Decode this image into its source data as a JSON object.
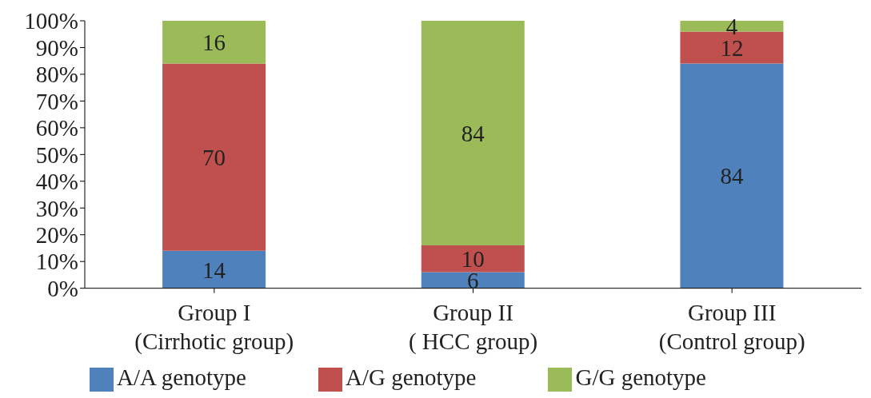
{
  "chart_data": {
    "type": "bar",
    "stacked": true,
    "categories": [
      "Group I\n(Cirrhotic group)",
      "Group II\n( HCC group)",
      "Group III\n(Control group)"
    ],
    "series": [
      {
        "name": "A/A genotype",
        "color": "#4f81bd",
        "values": [
          14,
          6,
          84
        ]
      },
      {
        "name": "A/G genotype",
        "color": "#c0504d",
        "values": [
          70,
          10,
          12
        ]
      },
      {
        "name": "G/G genotype",
        "color": "#9bbb59",
        "values": [
          16,
          84,
          4
        ]
      }
    ],
    "ylim": [
      0,
      100
    ],
    "yticks": [
      {
        "value": 0,
        "label": "0%"
      },
      {
        "value": 10,
        "label": "10%"
      },
      {
        "value": 20,
        "label": "20%"
      },
      {
        "value": 30,
        "label": "30%"
      },
      {
        "value": 40,
        "label": "40%"
      },
      {
        "value": 50,
        "label": "50%"
      },
      {
        "value": 60,
        "label": "60%"
      },
      {
        "value": 70,
        "label": "70%"
      },
      {
        "value": 80,
        "label": "80%"
      },
      {
        "value": 90,
        "label": "90%"
      },
      {
        "value": 100,
        "label": "100%"
      }
    ],
    "data_labels": true,
    "grid": false,
    "legend": "bottom"
  }
}
